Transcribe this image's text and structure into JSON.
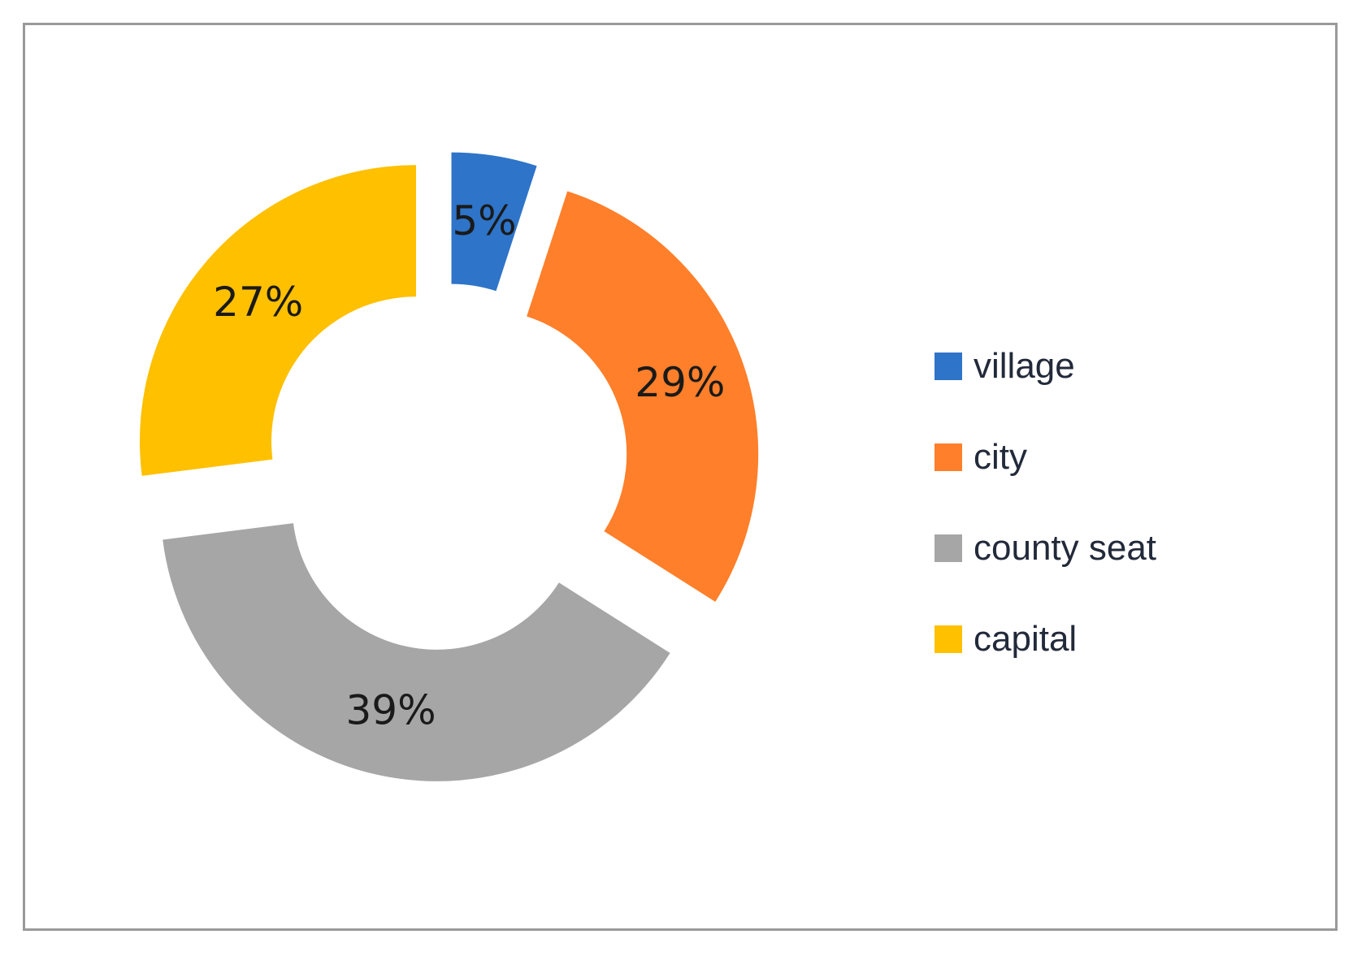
{
  "chart_data": {
    "type": "pie",
    "title": "",
    "categories": [
      "village",
      "city",
      "county seat",
      "capital"
    ],
    "values": [
      5,
      29,
      39,
      27
    ],
    "value_labels": [
      "5%",
      "29%",
      "39%",
      "27%"
    ],
    "colors": [
      "#2e74c8",
      "#ff7f2a",
      "#a6a6a6",
      "#ffc000"
    ],
    "legend_position": "right",
    "style": "exploded donut"
  },
  "legend": {
    "items": [
      {
        "label": "village",
        "color": "#2e74c8"
      },
      {
        "label": "city",
        "color": "#ff7f2a"
      },
      {
        "label": "county seat",
        "color": "#a6a6a6"
      },
      {
        "label": "capital",
        "color": "#ffc000"
      }
    ]
  }
}
